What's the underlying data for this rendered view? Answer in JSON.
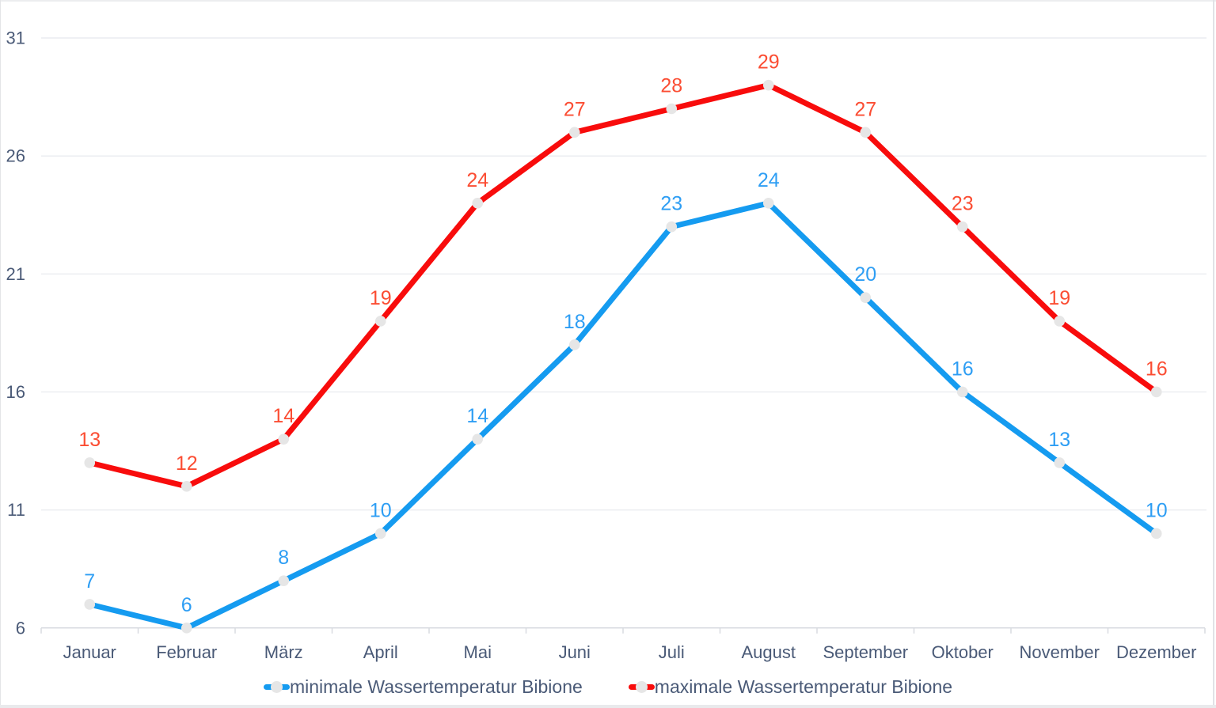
{
  "chart_data": {
    "type": "line",
    "title": "",
    "categories": [
      "Januar",
      "Februar",
      "März",
      "April",
      "Mai",
      "Juni",
      "Juli",
      "August",
      "September",
      "Oktober",
      "November",
      "Dezember"
    ],
    "series": [
      {
        "name": "minimale Wassertemperatur Bibione",
        "color": "#159BF0",
        "label_color": "#2E9EF4",
        "values": [
          7,
          6,
          8,
          10,
          14,
          18,
          23,
          24,
          20,
          16,
          13,
          10
        ]
      },
      {
        "name": "maximale Wassertemperatur Bibione",
        "color": "#F80C0C",
        "label_color": "#FB4D33",
        "values": [
          13,
          12,
          14,
          19,
          24,
          27,
          28,
          29,
          27,
          23,
          19,
          16
        ]
      }
    ],
    "y_ticks": [
      6,
      11,
      16,
      21,
      26,
      31
    ],
    "ylim": [
      6,
      31
    ],
    "xlabel": "",
    "ylabel": "",
    "grid": true,
    "legend_position": "bottom",
    "marker_color": "#E6E6E6",
    "axis_text_color": "#4A5A77",
    "gridline_color": "#EAECF0",
    "axis_line_color": "#D8DBE0"
  }
}
